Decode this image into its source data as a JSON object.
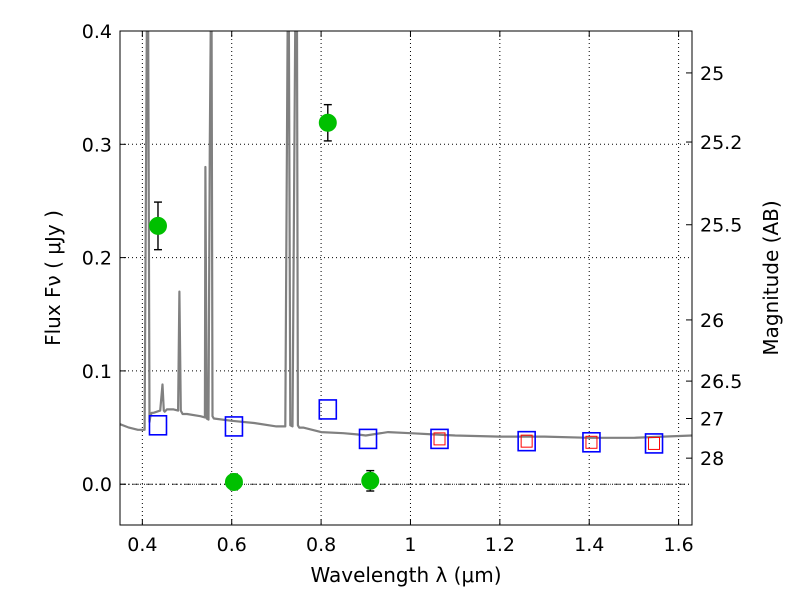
{
  "chart_data": {
    "type": "scatter",
    "xlabel": "Wavelength  λ (μm)",
    "ylabel": "Flux  Fν  ( μJy )",
    "ylabel_right": "Magnitude (AB)",
    "xlim": [
      0.35,
      1.63
    ],
    "ylim": [
      -0.036,
      0.4
    ],
    "grid": true,
    "x_ticks": [
      0.4,
      0.6,
      0.8,
      1.0,
      1.2,
      1.4,
      1.6
    ],
    "x_tick_labels": [
      "0.4",
      "0.6",
      "0.8",
      "1",
      "1.2",
      "1.4",
      "1.6"
    ],
    "y_ticks": [
      0.0,
      0.1,
      0.2,
      0.3,
      0.4
    ],
    "y_tick_labels": [
      "0.0",
      "0.1",
      "0.2",
      "0.3",
      "0.4"
    ],
    "right_ticks": [
      {
        "label": "25",
        "flux": 0.363
      },
      {
        "label": "25.2",
        "flux": 0.302
      },
      {
        "label": "25.5",
        "flux": 0.229
      },
      {
        "label": "26",
        "flux": 0.145
      },
      {
        "label": "26.5",
        "flux": 0.091
      },
      {
        "label": "27",
        "flux": 0.058
      },
      {
        "label": "28",
        "flux": 0.023
      }
    ],
    "colors": {
      "model": "#808080",
      "observed": "#00c000",
      "model_photometry": "#0000ff",
      "alt_photometry": "#ff0000",
      "errorbar": "#000000",
      "grid": "#000000"
    },
    "series": [
      {
        "kind": "model-spectrum",
        "color": "#808080",
        "x": [
          0.35,
          0.37,
          0.39,
          0.405,
          0.41,
          0.413,
          0.416,
          0.418,
          0.421,
          0.425,
          0.44,
          0.445,
          0.448,
          0.45,
          0.455,
          0.47,
          0.48,
          0.483,
          0.486,
          0.49,
          0.5,
          0.53,
          0.54,
          0.541,
          0.544,
          0.548,
          0.551,
          0.553,
          0.555,
          0.557,
          0.56,
          0.6,
          0.65,
          0.7,
          0.72,
          0.725,
          0.728,
          0.731,
          0.736,
          0.742,
          0.746,
          0.748,
          0.751,
          0.755,
          0.76,
          0.8,
          0.85,
          0.88,
          0.9,
          0.95,
          1.0,
          1.05,
          1.1,
          1.2,
          1.3,
          1.4,
          1.5,
          1.63
        ],
        "y": [
          0.053,
          0.05,
          0.048,
          0.048,
          0.4,
          0.4,
          0.055,
          0.06,
          0.063,
          0.063,
          0.065,
          0.088,
          0.065,
          0.064,
          0.066,
          0.066,
          0.065,
          0.17,
          0.065,
          0.062,
          0.062,
          0.06,
          0.059,
          0.28,
          0.058,
          0.057,
          0.3,
          0.4,
          0.4,
          0.06,
          0.058,
          0.056,
          0.054,
          0.051,
          0.051,
          0.4,
          0.4,
          0.052,
          0.051,
          0.4,
          0.4,
          0.052,
          0.05,
          0.05,
          0.05,
          0.046,
          0.045,
          0.044,
          0.043,
          0.046,
          0.045,
          0.044,
          0.043,
          0.042,
          0.042,
          0.041,
          0.041,
          0.043
        ]
      },
      {
        "kind": "observed",
        "color": "#00c000",
        "x": [
          0.435,
          0.605,
          0.815,
          0.91
        ],
        "y": [
          0.228,
          0.002,
          0.319,
          0.003
        ],
        "yerr": [
          0.021,
          0.007,
          0.016,
          0.009
        ]
      },
      {
        "kind": "model-photometry",
        "color": "#0000ff",
        "x": [
          0.435,
          0.605,
          0.815,
          0.905,
          1.065,
          1.26,
          1.405,
          1.545
        ],
        "y": [
          0.052,
          0.051,
          0.066,
          0.04,
          0.04,
          0.038,
          0.037,
          0.036
        ]
      },
      {
        "kind": "alt-photometry",
        "color": "#ff0000",
        "x": [
          1.065,
          1.26,
          1.405,
          1.545
        ],
        "y": [
          0.04,
          0.038,
          0.037,
          0.036
        ]
      }
    ]
  }
}
